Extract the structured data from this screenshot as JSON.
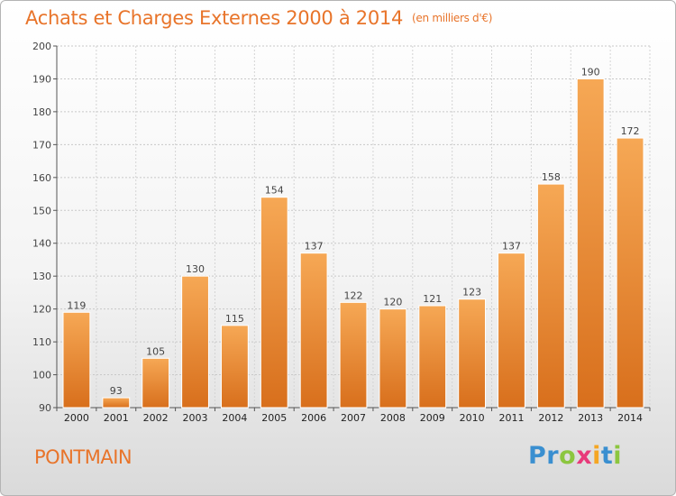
{
  "title": "Achats et Charges Externes 2000 à 2014",
  "subtitle": "(en milliers d'€)",
  "commune": "PONTMAIN",
  "brand": {
    "letters": [
      "P",
      "r",
      "o",
      "x",
      "i",
      "t",
      "i"
    ],
    "colors": [
      "#3a8fd0",
      "#3a8fd0",
      "#8cc63f",
      "#e83a7a",
      "#f5a623",
      "#3a8fd0",
      "#8cc63f"
    ]
  },
  "colors": {
    "accent": "#e8742a",
    "bar_light": "#f6a855",
    "bar_dark": "#d86f1c"
  },
  "chart_data": {
    "type": "bar",
    "categories": [
      "2000",
      "2001",
      "2002",
      "2003",
      "2004",
      "2005",
      "2006",
      "2007",
      "2008",
      "2009",
      "2010",
      "2011",
      "2012",
      "2013",
      "2014"
    ],
    "values": [
      119,
      93,
      105,
      130,
      115,
      154,
      137,
      122,
      120,
      121,
      123,
      137,
      158,
      190,
      172
    ],
    "ylim": [
      90,
      200
    ],
    "yticks": [
      90,
      100,
      110,
      120,
      130,
      140,
      150,
      160,
      170,
      180,
      190,
      200
    ],
    "grid": true,
    "title": "Achats et Charges Externes 2000 à 2014",
    "subtitle": "(en milliers d'€)"
  }
}
